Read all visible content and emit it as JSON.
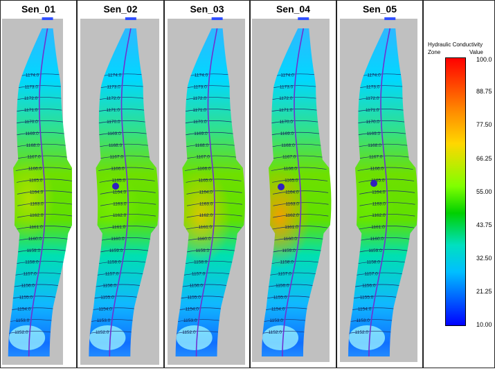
{
  "panels": [
    {
      "title": "Sen_01",
      "contours": [
        "1174.0",
        "1173.0",
        "1172.0",
        "1171.0",
        "1170.0",
        "1169.0",
        "1168.0",
        "1167.0",
        "1166.0",
        "1165.0",
        "1164.0",
        "1163.0",
        "1162.0",
        "1161.0",
        "1160.0",
        "1159.0",
        "1158.0",
        "1157.0",
        "1156.0",
        "1155.0",
        "1154.0",
        "1153.0",
        "1152.0"
      ]
    },
    {
      "title": "Sen_02",
      "contours": [
        "1174.0",
        "1173.0",
        "1172.0",
        "1171.0",
        "1170.0",
        "1169.0",
        "1168.0",
        "1167.0",
        "1166.0",
        "1165.0",
        "1164.0",
        "1163.0",
        "1162.0",
        "1161.0",
        "1160.0",
        "1159.0",
        "1158.0",
        "1157.0",
        "1156.0",
        "1155.0",
        "1154.0",
        "1153.0",
        "1152.0"
      ]
    },
    {
      "title": "Sen_03",
      "contours": [
        "1174.0",
        "1173.0",
        "1172.0",
        "1171.0",
        "1170.0",
        "1169.0",
        "1168.0",
        "1167.0",
        "1166.0",
        "1165.0",
        "1164.0",
        "1163.0",
        "1162.0",
        "1161.0",
        "1160.0",
        "1159.0",
        "1158.0",
        "1157.0",
        "1156.0",
        "1155.0",
        "1154.0",
        "1153.0",
        "1152.0"
      ]
    },
    {
      "title": "Sen_04",
      "contours": [
        "1174.0",
        "1173.0",
        "1172.0",
        "1171.0",
        "1170.0",
        "1169.0",
        "1168.0",
        "1167.0",
        "1166.0",
        "1165.0",
        "1164.0",
        "1163.0",
        "1162.0",
        "1161.0",
        "1160.0",
        "1159.0",
        "1158.0",
        "1157.0",
        "1156.0",
        "1155.0",
        "1154.0",
        "1153.0",
        "1152.0"
      ]
    },
    {
      "title": "Sen_05",
      "contours": [
        "1174.0",
        "1173.0",
        "1172.0",
        "1171.0",
        "1170.0",
        "1169.0",
        "1168.0",
        "1167.0",
        "1166.0",
        "1165.0",
        "1164.0",
        "1163.0",
        "1162.0",
        "1161.0",
        "1160.0",
        "1159.0",
        "1158.0",
        "1157.0",
        "1156.0",
        "1155.0",
        "1154.0",
        "1153.0",
        "1152.0"
      ]
    }
  ],
  "legend": {
    "title": "Hydraulic Conductivity",
    "zone_label": "Zone",
    "value_label": "Value",
    "ticks": [
      "100.0",
      "88.75",
      "77.50",
      "66.25",
      "55.00",
      "43.75",
      "32.50",
      "21.25",
      "10.00"
    ]
  },
  "colors": {
    "background_gray": "#c0c0c0",
    "river": "#7030d0",
    "contour": "#1a2a6a"
  }
}
